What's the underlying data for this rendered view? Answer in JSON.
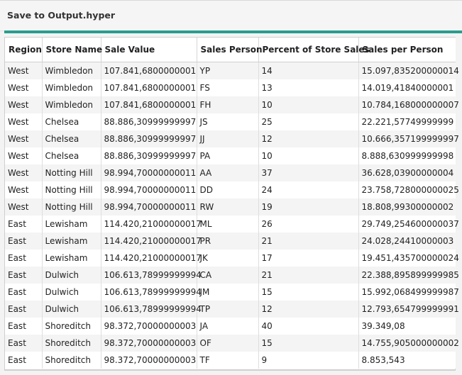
{
  "header": {
    "title": "Save to Output.hyper"
  },
  "colors": {
    "accent": "#2a9d8f",
    "row_stripe": "#f4f4f4",
    "row_plain": "#ffffff"
  },
  "table": {
    "columns": [
      "Region",
      "Store Name",
      "Sale Value",
      "Sales Person",
      "Percent of Store Sales",
      "Sales per Person"
    ],
    "rows": [
      [
        "West",
        "Wimbledon",
        "107.841,6800000001",
        "YP",
        "14",
        "15.097,835200000014"
      ],
      [
        "West",
        "Wimbledon",
        "107.841,6800000001",
        "FS",
        "13",
        "14.019,41840000001"
      ],
      [
        "West",
        "Wimbledon",
        "107.841,6800000001",
        "FH",
        "10",
        "10.784,168000000007"
      ],
      [
        "West",
        "Chelsea",
        "88.886,30999999997",
        "JS",
        "25",
        "22.221,57749999999"
      ],
      [
        "West",
        "Chelsea",
        "88.886,30999999997",
        "JJ",
        "12",
        "10.666,357199999997"
      ],
      [
        "West",
        "Chelsea",
        "88.886,30999999997",
        "PA",
        "10",
        "8.888,630999999998"
      ],
      [
        "West",
        "Notting Hill",
        "98.994,70000000011",
        "AA",
        "37",
        "36.628,03900000004"
      ],
      [
        "West",
        "Notting Hill",
        "98.994,70000000011",
        "DD",
        "24",
        "23.758,728000000025"
      ],
      [
        "West",
        "Notting Hill",
        "98.994,70000000011",
        "RW",
        "19",
        "18.808,99300000002"
      ],
      [
        "East",
        "Lewisham",
        "114.420,21000000017",
        "ML",
        "26",
        "29.749,254600000037"
      ],
      [
        "East",
        "Lewisham",
        "114.420,21000000017",
        "PR",
        "21",
        "24.028,24410000003"
      ],
      [
        "East",
        "Lewisham",
        "114.420,21000000017",
        "JK",
        "17",
        "19.451,435700000024"
      ],
      [
        "East",
        "Dulwich",
        "106.613,78999999994",
        "CA",
        "21",
        "22.388,895899999985"
      ],
      [
        "East",
        "Dulwich",
        "106.613,78999999994",
        "JM",
        "15",
        "15.992,068499999987"
      ],
      [
        "East",
        "Dulwich",
        "106.613,78999999994",
        "TP",
        "12",
        "12.793,654799999991"
      ],
      [
        "East",
        "Shoreditch",
        "98.372,70000000003",
        "JA",
        "40",
        "39.349,08"
      ],
      [
        "East",
        "Shoreditch",
        "98.372,70000000003",
        "OF",
        "15",
        "14.755,905000000002"
      ],
      [
        "East",
        "Shoreditch",
        "98.372,70000000003",
        "TF",
        "9",
        "8.853,543"
      ]
    ]
  }
}
